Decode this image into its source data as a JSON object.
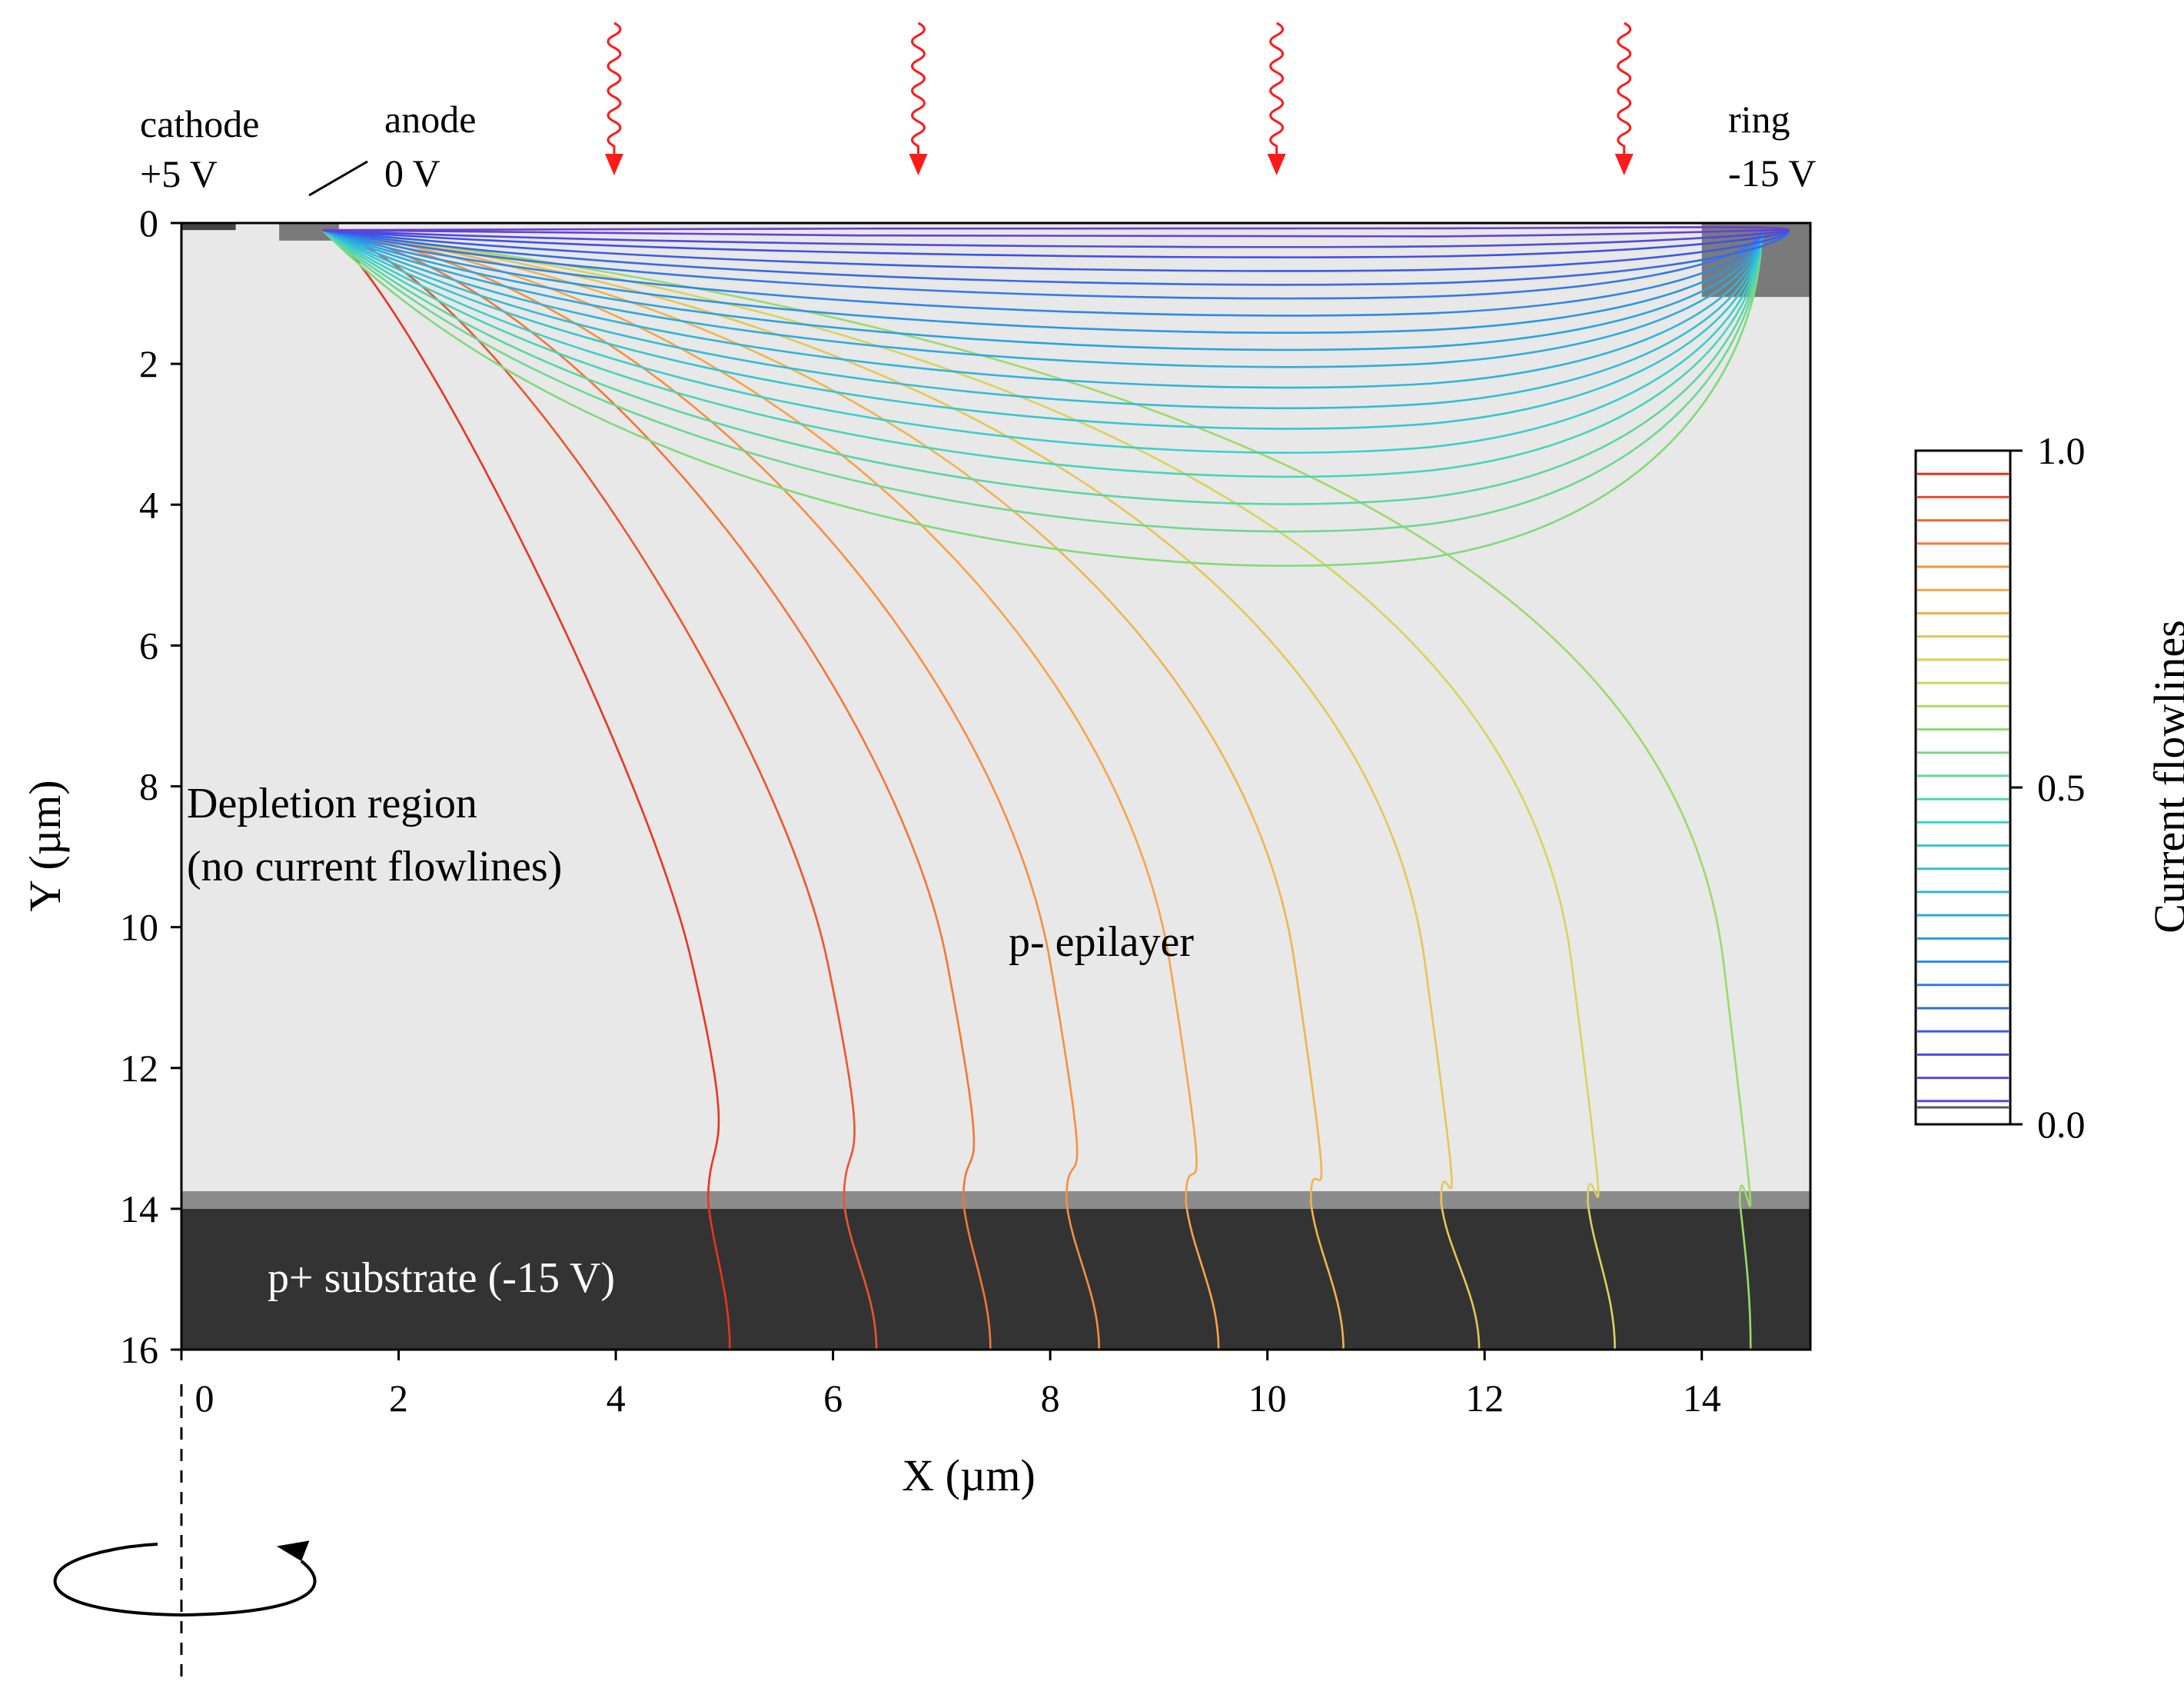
{
  "colors": {
    "epilayer": "#e8e8e8",
    "interface_band": "#8c8c8c",
    "substrate": "#333333",
    "implant": "#7a7a7a",
    "photon_arrow": "#ff1a1a",
    "frame": "#000000"
  },
  "labels": {
    "cathode_name": "cathode",
    "cathode_voltage": "+5 V",
    "anode_name": "anode",
    "anode_voltage": "0 V",
    "ring_name": "ring",
    "ring_voltage": "-15 V",
    "depletion_line1": "Depletion region",
    "depletion_line2": "(no current flowlines)",
    "epilayer": "p- epilayer",
    "substrate": "p+ substrate (-15 V)"
  },
  "icons": {
    "photon": "wavy-down-arrow-icon",
    "rotation": "rotation-arrow-icon",
    "axis": "dashed-symmetry-axis"
  },
  "photon_positions_um": [
    3.9,
    6.7,
    10.0,
    13.2
  ],
  "chart_data": {
    "type": "line",
    "xlabel": "X (µm)",
    "ylabel": "Y (µm)",
    "xlim": [
      0,
      15
    ],
    "ylim": [
      16,
      0
    ],
    "x_ticks": [
      "0",
      "2",
      "4",
      "6",
      "8",
      "10",
      "12",
      "14"
    ],
    "y_ticks": [
      "0",
      "2",
      "4",
      "6",
      "8",
      "10",
      "12",
      "14",
      "16"
    ],
    "regions": {
      "epilayer_y": [
        0,
        13.75
      ],
      "interface_y": [
        13.75,
        14.0
      ],
      "substrate_y": [
        14.0,
        16.0
      ],
      "cathode_contact_x": [
        0.0,
        0.5
      ],
      "anode_implant_x": [
        0.9,
        1.45
      ],
      "anode_implant_depth": 0.25,
      "ring_implant_x": [
        14.0,
        15.0
      ],
      "ring_implant_depth": 1.05
    },
    "colorbar": {
      "label": "Current flowlines",
      "ticks": [
        "0.0",
        "0.5",
        "1.0"
      ],
      "range": [
        0.0,
        1.0
      ]
    },
    "flowlines_to_substrate": [
      {
        "value": 0.96,
        "x_interface": 4.85,
        "x_bottom": 5.05
      },
      {
        "value": 0.92,
        "x_interface": 6.1,
        "x_bottom": 6.4
      },
      {
        "value": 0.87,
        "x_interface": 7.2,
        "x_bottom": 7.45
      },
      {
        "value": 0.83,
        "x_interface": 8.15,
        "x_bottom": 8.45
      },
      {
        "value": 0.79,
        "x_interface": 9.25,
        "x_bottom": 9.55
      },
      {
        "value": 0.75,
        "x_interface": 10.4,
        "x_bottom": 10.7
      },
      {
        "value": 0.71,
        "x_interface": 11.6,
        "x_bottom": 11.95
      },
      {
        "value": 0.67,
        "x_interface": 12.95,
        "x_bottom": 13.2
      },
      {
        "value": 0.6,
        "x_interface": 14.35,
        "x_bottom": 14.45
      }
    ],
    "flowlines_to_ring_max_depth": [
      {
        "value": 0.56,
        "depth": 5.0
      },
      {
        "value": 0.53,
        "depth": 4.5
      },
      {
        "value": 0.5,
        "depth": 4.1
      },
      {
        "value": 0.47,
        "depth": 3.7
      },
      {
        "value": 0.44,
        "depth": 3.35
      },
      {
        "value": 0.41,
        "depth": 3.0
      },
      {
        "value": 0.38,
        "depth": 2.7
      },
      {
        "value": 0.35,
        "depth": 2.4
      },
      {
        "value": 0.32,
        "depth": 2.1
      },
      {
        "value": 0.29,
        "depth": 1.85
      },
      {
        "value": 0.26,
        "depth": 1.6
      },
      {
        "value": 0.23,
        "depth": 1.35
      },
      {
        "value": 0.2,
        "depth": 1.1
      },
      {
        "value": 0.17,
        "depth": 0.9
      },
      {
        "value": 0.14,
        "depth": 0.7
      },
      {
        "value": 0.11,
        "depth": 0.5
      },
      {
        "value": 0.08,
        "depth": 0.35
      },
      {
        "value": 0.05,
        "depth": 0.2
      },
      {
        "value": 0.02,
        "depth": 0.08
      }
    ]
  }
}
